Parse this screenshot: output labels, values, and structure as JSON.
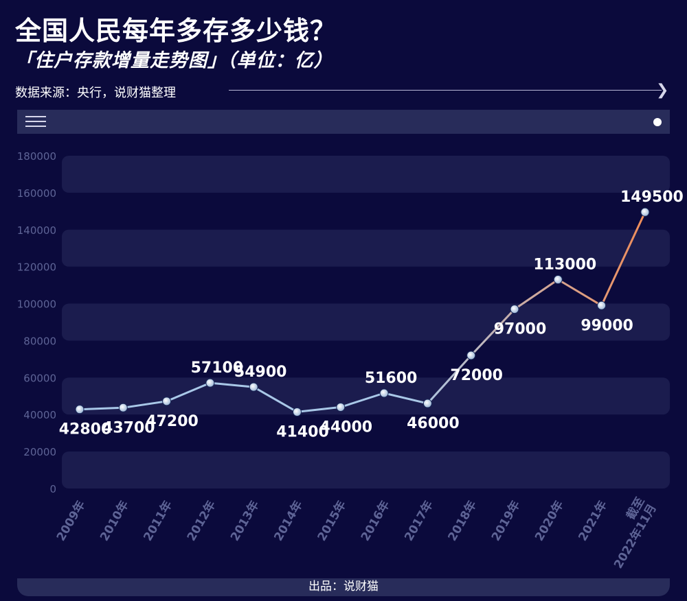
{
  "header": {
    "title": "全国人民每年多存多少钱？",
    "subtitle": "「住户存款增量走势图」（单位：亿）",
    "source": "数据来源：央行，说财猫整理"
  },
  "footer": {
    "credit": "出品：说财猫"
  },
  "colors": {
    "background": "#0b0a3c",
    "band": "#1b1c4e",
    "line_start": "#a9c8e8",
    "line_end": "#f08d59"
  },
  "chart_data": {
    "type": "line",
    "categories": [
      "2009年",
      "2010年",
      "2011年",
      "2012年",
      "2013年",
      "2014年",
      "2015年",
      "2016年",
      "2017年",
      "2018年",
      "2019年",
      "2020年",
      "2021年",
      "截至2022年11月"
    ],
    "values": [
      42800,
      43700,
      47200,
      57100,
      54900,
      41400,
      44000,
      51600,
      46000,
      72000,
      97000,
      113000,
      99000,
      149500
    ],
    "y_ticks": [
      0,
      20000,
      40000,
      60000,
      80000,
      100000,
      120000,
      140000,
      160000,
      180000
    ],
    "ylim": [
      0,
      180000
    ],
    "grid": "alternating horizontal bands",
    "legend": "none",
    "data_labels": true
  }
}
